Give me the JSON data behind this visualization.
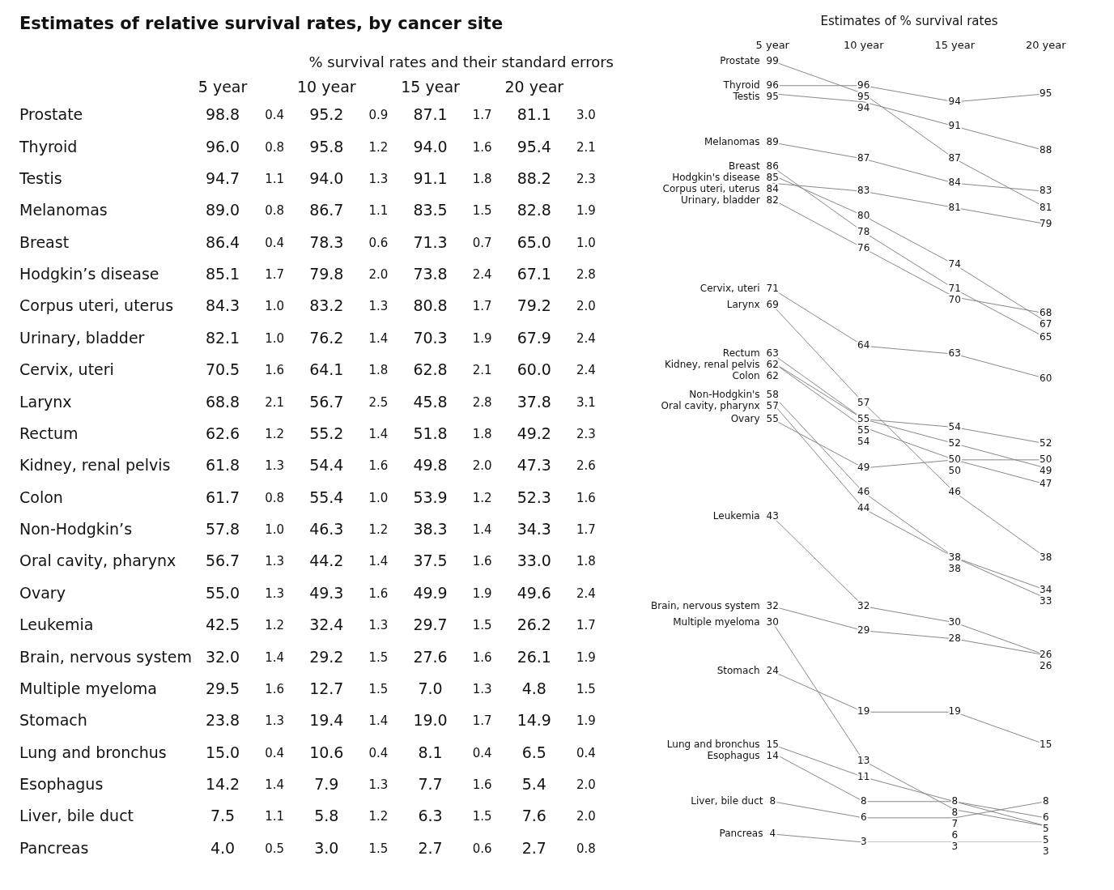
{
  "chart_data": [
    {
      "type": "heatmap",
      "data_labels": true,
      "title": "Estimates of relative survival rates, by cancer site",
      "subtitle": "% survival rates and their standard errors",
      "categories": [
        "5 year",
        null,
        "10 year",
        null,
        "15 year",
        null,
        "20 year",
        null
      ],
      "y_categories": [
        "Prostate",
        "Thyroid",
        "Testis",
        "Melanomas",
        "Breast",
        "Hodgkin’s disease",
        "Corpus uteri, uterus",
        "Urinary, bladder",
        "Cervix, uteri",
        "Larynx",
        "Rectum",
        "Kidney, renal pelvis",
        "Colon",
        "Non-Hodgkin’s",
        "Oral cavity, pharynx",
        "Ovary",
        "Leukemia",
        "Brain, nervous system",
        "Multiple myeloma",
        "Stomach",
        "Lung and bronchus",
        "Esophagus",
        "Liver, bile duct",
        "Pancreas"
      ],
      "cells": [
        [
          98.8,
          0.4,
          95.2,
          0.9,
          87.1,
          1.7,
          81.1,
          3.0
        ],
        [
          96.0,
          0.8,
          95.8,
          1.2,
          94.0,
          1.6,
          95.4,
          2.1
        ],
        [
          94.7,
          1.1,
          94.0,
          1.3,
          91.1,
          1.8,
          88.2,
          2.3
        ],
        [
          89.0,
          0.8,
          86.7,
          1.1,
          83.5,
          1.5,
          82.8,
          1.9
        ],
        [
          86.4,
          0.4,
          78.3,
          0.6,
          71.3,
          0.7,
          65.0,
          1.0
        ],
        [
          85.1,
          1.7,
          79.8,
          2.0,
          73.8,
          2.4,
          67.1,
          2.8
        ],
        [
          84.3,
          1.0,
          83.2,
          1.3,
          80.8,
          1.7,
          79.2,
          2.0
        ],
        [
          82.1,
          1.0,
          76.2,
          1.4,
          70.3,
          1.9,
          67.9,
          2.4
        ],
        [
          70.5,
          1.6,
          64.1,
          1.8,
          62.8,
          2.1,
          60.0,
          2.4
        ],
        [
          68.8,
          2.1,
          56.7,
          2.5,
          45.8,
          2.8,
          37.8,
          3.1
        ],
        [
          62.6,
          1.2,
          55.2,
          1.4,
          51.8,
          1.8,
          49.2,
          2.3
        ],
        [
          61.8,
          1.3,
          54.4,
          1.6,
          49.8,
          2.0,
          47.3,
          2.6
        ],
        [
          61.7,
          0.8,
          55.4,
          1.0,
          53.9,
          1.2,
          52.3,
          1.6
        ],
        [
          57.8,
          1.0,
          46.3,
          1.2,
          38.3,
          1.4,
          34.3,
          1.7
        ],
        [
          56.7,
          1.3,
          44.2,
          1.4,
          37.5,
          1.6,
          33.0,
          1.8
        ],
        [
          55.0,
          1.3,
          49.3,
          1.6,
          49.9,
          1.9,
          49.6,
          2.4
        ],
        [
          42.5,
          1.2,
          32.4,
          1.3,
          29.7,
          1.5,
          26.2,
          1.7
        ],
        [
          32.0,
          1.4,
          29.2,
          1.5,
          27.6,
          1.6,
          26.1,
          1.9
        ],
        [
          29.5,
          1.6,
          12.7,
          1.5,
          7.0,
          1.3,
          4.8,
          1.5
        ],
        [
          23.8,
          1.3,
          19.4,
          1.4,
          19.0,
          1.7,
          14.9,
          1.9
        ],
        [
          15.0,
          0.4,
          10.6,
          0.4,
          8.1,
          0.4,
          6.5,
          0.4
        ],
        [
          14.2,
          1.4,
          7.9,
          1.3,
          7.7,
          1.6,
          5.4,
          2.0
        ],
        [
          7.5,
          1.1,
          5.8,
          1.2,
          6.3,
          1.5,
          7.6,
          2.0
        ],
        [
          4.0,
          0.5,
          3.0,
          1.5,
          2.7,
          0.6,
          2.7,
          0.8
        ]
      ],
      "cell_labels": [
        [
          "98.8",
          "0.4",
          "95.2",
          "0.9",
          "87.1",
          "1.7",
          "81.1",
          "3.0"
        ],
        [
          "96.0",
          "0.8",
          "95.8",
          "1.2",
          "94.0",
          "1.6",
          "95.4",
          "2.1"
        ],
        [
          "94.7",
          "1.1",
          "94.0",
          "1.3",
          "91.1",
          "1.8",
          "88.2",
          "2.3"
        ],
        [
          "89.0",
          "0.8",
          "86.7",
          "1.1",
          "83.5",
          "1.5",
          "82.8",
          "1.9"
        ],
        [
          "86.4",
          "0.4",
          "78.3",
          "0.6",
          "71.3",
          "0.7",
          "65.0",
          "1.0"
        ],
        [
          "85.1",
          "1.7",
          "79.8",
          "2.0",
          "73.8",
          "2.4",
          "67.1",
          "2.8"
        ],
        [
          "84.3",
          "1.0",
          "83.2",
          "1.3",
          "80.8",
          "1.7",
          "79.2",
          "2.0"
        ],
        [
          "82.1",
          "1.0",
          "76.2",
          "1.4",
          "70.3",
          "1.9",
          "67.9",
          "2.4"
        ],
        [
          "70.5",
          "1.6",
          "64.1",
          "1.8",
          "62.8",
          "2.1",
          "60.0",
          "2.4"
        ],
        [
          "68.8",
          "2.1",
          "56.7",
          "2.5",
          "45.8",
          "2.8",
          "37.8",
          "3.1"
        ],
        [
          "62.6",
          "1.2",
          "55.2",
          "1.4",
          "51.8",
          "1.8",
          "49.2",
          "2.3"
        ],
        [
          "61.8",
          "1.3",
          "54.4",
          "1.6",
          "49.8",
          "2.0",
          "47.3",
          "2.6"
        ],
        [
          "61.7",
          "0.8",
          "55.4",
          "1.0",
          "53.9",
          "1.2",
          "52.3",
          "1.6"
        ],
        [
          "57.8",
          "1.0",
          "46.3",
          "1.2",
          "38.3",
          "1.4",
          "34.3",
          "1.7"
        ],
        [
          "56.7",
          "1.3",
          "44.2",
          "1.4",
          "37.5",
          "1.6",
          "33.0",
          "1.8"
        ],
        [
          "55.0",
          "1.3",
          "49.3",
          "1.6",
          "49.9",
          "1.9",
          "49.6",
          "2.4"
        ],
        [
          "42.5",
          "1.2",
          "32.4",
          "1.3",
          "29.7",
          "1.5",
          "26.2",
          "1.7"
        ],
        [
          "32.0",
          "1.4",
          "29.2",
          "1.5",
          "27.6",
          "1.6",
          "26.1",
          "1.9"
        ],
        [
          "29.5",
          "1.6",
          "12.7",
          "1.5",
          "7.0",
          "1.3",
          "4.8",
          "1.5"
        ],
        [
          "23.8",
          "1.3",
          "19.4",
          "1.4",
          "19.0",
          "1.7",
          "14.9",
          "1.9"
        ],
        [
          "15.0",
          "0.4",
          "10.6",
          "0.4",
          "8.1",
          "0.4",
          "6.5",
          "0.4"
        ],
        [
          "14.2",
          "1.4",
          "7.9",
          "1.3",
          "7.7",
          "1.6",
          "5.4",
          "2.0"
        ],
        [
          "7.5",
          "1.1",
          "5.8",
          "1.2",
          "6.3",
          "1.5",
          "7.6",
          "2.0"
        ],
        [
          "4.0",
          "0.5",
          "3.0",
          "1.5",
          "2.7",
          "0.6",
          "2.7",
          "0.8"
        ]
      ]
    },
    {
      "type": "line",
      "title": "Estimates of % survival rates",
      "categories": [
        "5 year",
        "10 year",
        "15 year",
        "20 year"
      ],
      "data_labels": true,
      "legend": false,
      "marker": "none",
      "series": [
        {
          "name": "Prostate",
          "color": "#888888",
          "values": [
            99,
            95,
            87,
            81
          ]
        },
        {
          "name": "Thyroid",
          "color": "#888888",
          "values": [
            96,
            96,
            94,
            95
          ]
        },
        {
          "name": "Testis",
          "color": "#888888",
          "values": [
            95,
            94,
            91,
            88
          ]
        },
        {
          "name": "Melanomas",
          "color": "#888888",
          "values": [
            89,
            87,
            84,
            83
          ]
        },
        {
          "name": "Breast",
          "color": "#888888",
          "values": [
            86,
            78,
            71,
            65
          ]
        },
        {
          "name": "Hodgkin's disease",
          "color": "#888888",
          "values": [
            85,
            80,
            74,
            67
          ]
        },
        {
          "name": "Corpus uteri, uterus",
          "color": "#888888",
          "values": [
            84,
            83,
            81,
            79
          ]
        },
        {
          "name": "Urinary, bladder",
          "color": "#888888",
          "values": [
            82,
            76,
            70,
            68
          ]
        },
        {
          "name": "Cervix, uteri",
          "color": "#888888",
          "values": [
            71,
            64,
            63,
            60
          ]
        },
        {
          "name": "Larynx",
          "color": "#888888",
          "values": [
            69,
            57,
            46,
            38
          ]
        },
        {
          "name": "Rectum",
          "color": "#888888",
          "values": [
            63,
            55,
            52,
            49
          ]
        },
        {
          "name": "Kidney, renal pelvis",
          "color": "#888888",
          "values": [
            62,
            54,
            50,
            47
          ]
        },
        {
          "name": "Colon",
          "color": "#888888",
          "values": [
            62,
            55,
            54,
            52
          ]
        },
        {
          "name": "Non-Hodgkin's",
          "color": "#888888",
          "values": [
            58,
            46,
            38,
            34
          ]
        },
        {
          "name": "Oral cavity, pharynx",
          "color": "#888888",
          "values": [
            57,
            44,
            38,
            33
          ]
        },
        {
          "name": "Ovary",
          "color": "#888888",
          "values": [
            55,
            49,
            50,
            50
          ]
        },
        {
          "name": "Leukemia",
          "color": "#888888",
          "values": [
            43,
            32,
            30,
            26
          ]
        },
        {
          "name": "Brain, nervous system",
          "color": "#888888",
          "values": [
            32,
            29,
            28,
            26
          ]
        },
        {
          "name": "Multiple myeloma",
          "color": "#888888",
          "values": [
            30,
            13,
            7,
            5
          ]
        },
        {
          "name": "Stomach",
          "color": "#888888",
          "values": [
            24,
            19,
            19,
            15
          ]
        },
        {
          "name": "Lung and bronchus",
          "color": "#888888",
          "values": [
            15,
            11,
            8,
            6
          ]
        },
        {
          "name": "Esophagus",
          "color": "#888888",
          "values": [
            14,
            8,
            8,
            5
          ]
        },
        {
          "name": "Liver, bile duct",
          "color": "#888888",
          "values": [
            8,
            6,
            6,
            8
          ]
        },
        {
          "name": "Pancreas",
          "color": "#888888",
          "values": [
            4,
            3,
            3,
            3
          ]
        }
      ]
    }
  ]
}
